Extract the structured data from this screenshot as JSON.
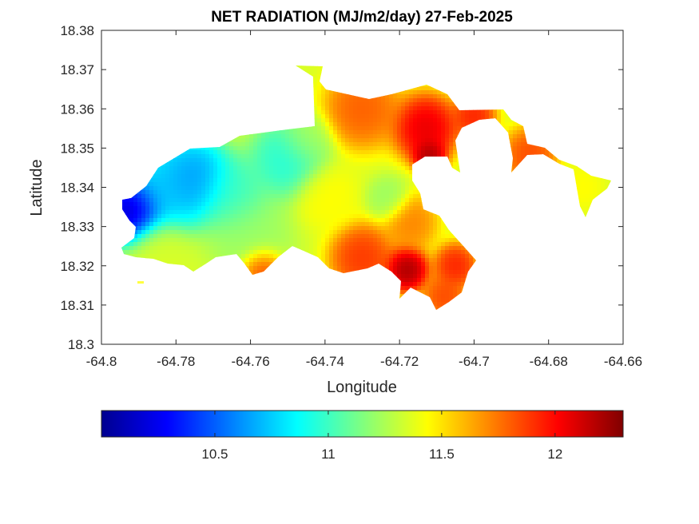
{
  "chart_data": {
    "type": "heatmap",
    "title": "NET RADIATION (MJ/m2/day) 27-Feb-2025",
    "xlabel": "Longitude",
    "ylabel": "Latitude",
    "xlim": [
      -64.8,
      -64.66
    ],
    "ylim": [
      18.3,
      18.38
    ],
    "x_ticks": [
      -64.8,
      -64.78,
      -64.76,
      -64.74,
      -64.72,
      -64.7,
      -64.68,
      -64.66
    ],
    "x_tick_labels": [
      "-64.8",
      "-64.78",
      "-64.76",
      "-64.74",
      "-64.72",
      "-64.7",
      "-64.68",
      "-64.66"
    ],
    "y_ticks": [
      18.3,
      18.31,
      18.32,
      18.33,
      18.34,
      18.35,
      18.36,
      18.37,
      18.38
    ],
    "y_tick_labels": [
      "18.3",
      "18.31",
      "18.32",
      "18.33",
      "18.34",
      "18.35",
      "18.36",
      "18.37",
      "18.38"
    ],
    "grid": false,
    "colormap": "jet",
    "colorbar": {
      "orientation": "horizontal",
      "placement": "bottom",
      "range": [
        10.0,
        12.3
      ],
      "ticks": [
        10.5,
        11,
        11.5,
        12
      ],
      "tick_labels": [
        "10.5",
        "11",
        "11.5",
        "12"
      ]
    },
    "surface": {
      "base_value": 11.35,
      "features": [
        {
          "lon": -64.792,
          "lat": 18.334,
          "value": 10.0,
          "radius": 0.006
        },
        {
          "lon": -64.775,
          "lat": 18.342,
          "value": 10.55,
          "radius": 0.007
        },
        {
          "lon": -64.783,
          "lat": 18.34,
          "value": 10.7,
          "radius": 0.008
        },
        {
          "lon": -64.765,
          "lat": 18.338,
          "value": 10.95,
          "radius": 0.007
        },
        {
          "lon": -64.75,
          "lat": 18.347,
          "value": 10.9,
          "radius": 0.007
        },
        {
          "lon": -64.76,
          "lat": 18.328,
          "value": 11.2,
          "radius": 0.008
        },
        {
          "lon": -64.785,
          "lat": 18.324,
          "value": 11.35,
          "radius": 0.006
        },
        {
          "lon": -64.74,
          "lat": 18.338,
          "value": 11.45,
          "radius": 0.006
        },
        {
          "lon": -64.723,
          "lat": 18.337,
          "value": 11.2,
          "radius": 0.004
        },
        {
          "lon": -64.73,
          "lat": 18.36,
          "value": 11.85,
          "radius": 0.007
        },
        {
          "lon": -64.713,
          "lat": 18.355,
          "value": 12.15,
          "radius": 0.006
        },
        {
          "lon": -64.712,
          "lat": 18.348,
          "value": 12.3,
          "radius": 0.003
        },
        {
          "lon": -64.718,
          "lat": 18.319,
          "value": 12.3,
          "radius": 0.004
        },
        {
          "lon": -64.73,
          "lat": 18.322,
          "value": 11.95,
          "radius": 0.006
        },
        {
          "lon": -64.757,
          "lat": 18.319,
          "value": 11.95,
          "radius": 0.004
        },
        {
          "lon": -64.705,
          "lat": 18.32,
          "value": 12.0,
          "radius": 0.004
        },
        {
          "lon": -64.708,
          "lat": 18.312,
          "value": 11.9,
          "radius": 0.004
        },
        {
          "lon": -64.7,
          "lat": 18.358,
          "value": 12.0,
          "radius": 0.004
        },
        {
          "lon": -64.685,
          "lat": 18.348,
          "value": 11.9,
          "radius": 0.005
        },
        {
          "lon": -64.671,
          "lat": 18.34,
          "value": 11.45,
          "radius": 0.004
        },
        {
          "lon": -64.745,
          "lat": 18.352,
          "value": 11.25,
          "radius": 0.005
        },
        {
          "lon": -64.717,
          "lat": 18.331,
          "value": 11.75,
          "radius": 0.005
        }
      ]
    }
  }
}
